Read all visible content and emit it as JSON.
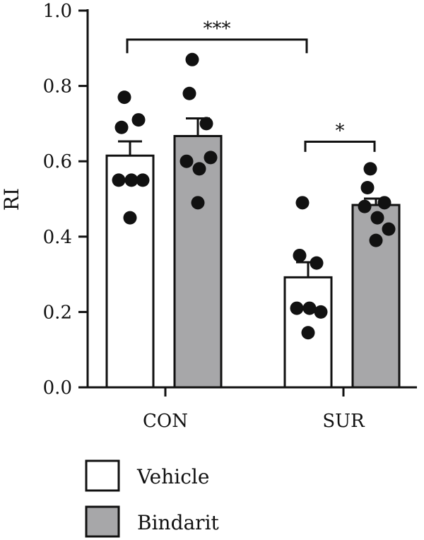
{
  "chart_data": {
    "type": "bar",
    "ylabel": "RI",
    "ylim": [
      0,
      1.0
    ],
    "yticks": [
      "0.0",
      "0.2",
      "0.4",
      "0.6",
      "0.8",
      "1.0"
    ],
    "categories": [
      "CON",
      "SUR"
    ],
    "series": [
      {
        "name": "Vehicle",
        "color": "#ffffff",
        "values": [
          0.615,
          0.292
        ],
        "sem": [
          0.038,
          0.04
        ],
        "points": [
          [
            0.77,
            0.69,
            0.71,
            0.55,
            0.55,
            0.55,
            0.45
          ],
          [
            0.49,
            0.35,
            0.33,
            0.21,
            0.21,
            0.2,
            0.145
          ]
        ]
      },
      {
        "name": "Bindarit",
        "color": "#a7a7a9",
        "values": [
          0.667,
          0.484
        ],
        "sem": [
          0.047,
          0.017
        ],
        "points": [
          [
            0.87,
            0.78,
            0.7,
            0.6,
            0.58,
            0.61,
            0.49
          ],
          [
            0.58,
            0.53,
            0.49,
            0.48,
            0.45,
            0.42,
            0.39
          ]
        ]
      }
    ],
    "significance": [
      {
        "label": "***",
        "y": 0.923,
        "drop": 0.036,
        "from": [
          0,
          0
        ],
        "to": [
          1,
          0
        ]
      },
      {
        "label": "*",
        "y": 0.652,
        "drop": 0.027,
        "from": [
          1,
          0
        ],
        "to": [
          1,
          1
        ]
      }
    ],
    "legend": {
      "position": "bottom-left"
    },
    "grid": false
  }
}
